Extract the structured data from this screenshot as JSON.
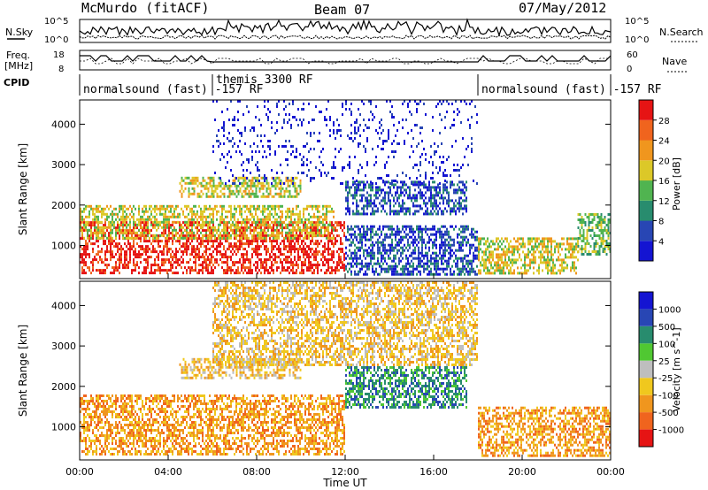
{
  "header": {
    "station": "McMurdo (fitACF)",
    "beam": "Beam 07",
    "date": "07/May/2012"
  },
  "noise_panel": {
    "left_label": "N.Sky",
    "right_label": "N.Search",
    "left_ticks": [
      "10^5",
      "10^0"
    ],
    "right_ticks": [
      "10^5",
      "10^0"
    ]
  },
  "freq_panel": {
    "left_label_1": "Freq.",
    "left_label_2": "[MHz]",
    "left_ticks": [
      "18",
      "8"
    ],
    "right_ticks": [
      "60",
      "0"
    ],
    "right_label": "Nave"
  },
  "cpid": {
    "label": "CPID",
    "segments": [
      {
        "text": "normalsound (fast) -157 RF",
        "start_hour": 0,
        "end_hour": 6
      },
      {
        "text": "themis 3300 RF",
        "start_hour": 6,
        "end_hour": 18
      },
      {
        "text": "normalsound (fast) -157 RF",
        "start_hour": 18,
        "end_hour": 24
      }
    ]
  },
  "chart_data": [
    {
      "type": "heatmap",
      "name": "Power",
      "ylabel": "Slant Range [km]",
      "ylim": [
        180,
        4600
      ],
      "yticks": [
        "1000",
        "2000",
        "3000",
        "4000"
      ],
      "xlim_hours": [
        0,
        24
      ],
      "colorbar": {
        "label": "Power [dB]",
        "ticks": [
          "4",
          "8",
          "12",
          "16",
          "20",
          "24",
          "28"
        ],
        "range": [
          0,
          32
        ],
        "colors": [
          "#1414d2",
          "#2846b4",
          "#288c6e",
          "#50b450",
          "#dcc828",
          "#f0961e",
          "#f0641e",
          "#e61414"
        ]
      },
      "regions": [
        {
          "x0": 0.0,
          "x1": 12.0,
          "y0": 300,
          "y1": 1600,
          "level": 7
        },
        {
          "x0": 0.0,
          "x1": 11.5,
          "y0": 1200,
          "y1": 2000,
          "level": 4
        },
        {
          "x0": 4.5,
          "x1": 10.0,
          "y0": 2200,
          "y1": 2700,
          "level": 4
        },
        {
          "x0": 12.0,
          "x1": 17.5,
          "y0": 1800,
          "y1": 2600,
          "level": 1
        },
        {
          "x0": 12.0,
          "x1": 18.0,
          "y0": 300,
          "y1": 1500,
          "level": 1
        },
        {
          "x0": 6.0,
          "x1": 18.0,
          "y0": 2500,
          "y1": 4600,
          "level": 0
        },
        {
          "x0": 18.0,
          "x1": 22.5,
          "y0": 300,
          "y1": 1200,
          "level": 4
        },
        {
          "x0": 22.5,
          "x1": 24.0,
          "y0": 800,
          "y1": 1800,
          "level": 3
        }
      ]
    },
    {
      "type": "heatmap",
      "name": "Velocity",
      "ylabel": "Slant Range [km]",
      "ylim": [
        180,
        4600
      ],
      "yticks": [
        "1000",
        "2000",
        "3000",
        "4000"
      ],
      "xlim_hours": [
        0,
        24
      ],
      "colorbar": {
        "label": "Velocity [m s^-1]",
        "ticks": [
          "1000",
          "500",
          "100",
          "25",
          "-25",
          "-100",
          "-500",
          "-1000"
        ],
        "colors": [
          "#1414d2",
          "#2846b4",
          "#288c6e",
          "#50c832",
          "#bebebe",
          "#f0c81e",
          "#f0961e",
          "#f0641e",
          "#e61414"
        ]
      },
      "regions": [
        {
          "x0": 0.0,
          "x1": 12.0,
          "y0": 300,
          "y1": 1800,
          "level": 6
        },
        {
          "x0": 4.5,
          "x1": 10.0,
          "y0": 2200,
          "y1": 2700,
          "level": 5
        },
        {
          "x0": 12.0,
          "x1": 17.5,
          "y0": 1500,
          "y1": 2500,
          "level": 2
        },
        {
          "x0": 6.0,
          "x1": 18.0,
          "y0": 2500,
          "y1": 4600,
          "level": 5
        },
        {
          "x0": 18.0,
          "x1": 24.0,
          "y0": 300,
          "y1": 1500,
          "level": 6
        }
      ]
    }
  ],
  "x_axis": {
    "ticks": [
      "00:00",
      "04:00",
      "08:00",
      "12:00",
      "16:00",
      "20:00",
      "00:00"
    ],
    "label": "Time UT"
  }
}
